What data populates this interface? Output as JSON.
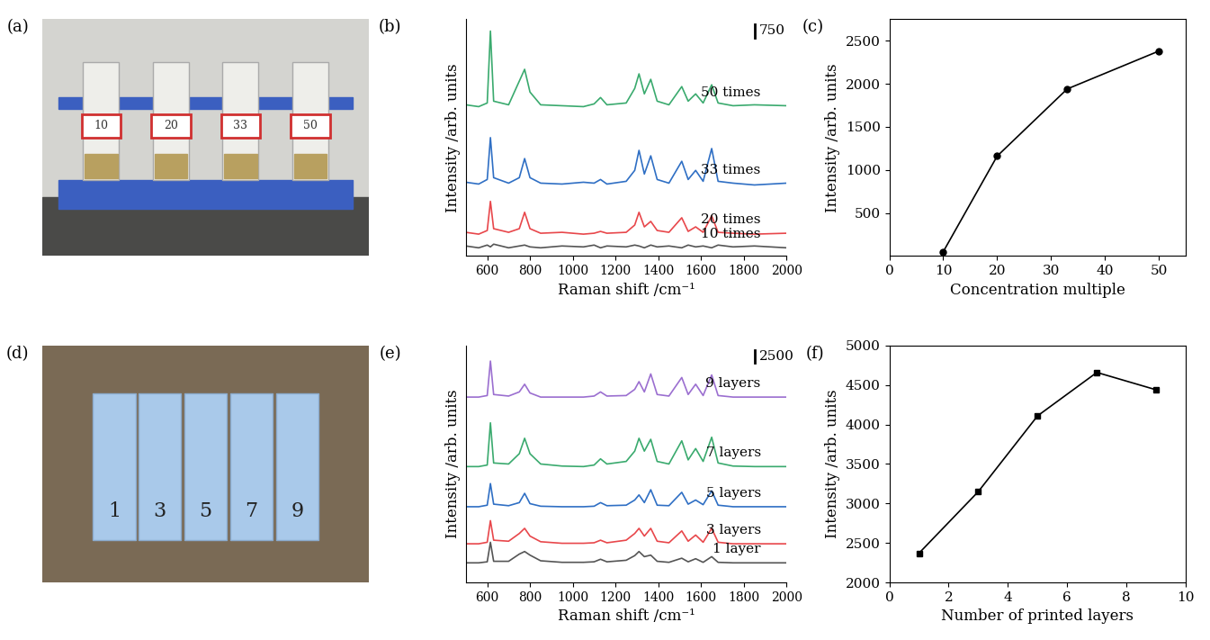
{
  "chart_data": [
    {
      "type": "photo",
      "title": "(a)",
      "labels": [
        "10",
        "20",
        "33",
        "50"
      ]
    },
    {
      "type": "line",
      "title": "(b)",
      "x_label": "Raman shift /cm⁻¹",
      "y_label": "Intensity /arb. units",
      "tick_labels": "x",
      "scale_bar": 750,
      "x": [
        500,
        560,
        600,
        615,
        630,
        700,
        750,
        775,
        800,
        850,
        950,
        1050,
        1100,
        1130,
        1160,
        1250,
        1290,
        1310,
        1335,
        1365,
        1395,
        1450,
        1510,
        1540,
        1575,
        1610,
        1650,
        1680,
        1750,
        1850,
        2000
      ],
      "xlim": [
        500,
        2000
      ],
      "xticks": [
        600,
        800,
        1000,
        1200,
        1400,
        1600,
        1800,
        2000
      ],
      "ylim": [
        0,
        13000
      ],
      "yticks": [],
      "series": [
        {
          "name": "10 times",
          "color": "#555555",
          "values": [
            550,
            450,
            600,
            500,
            650,
            450,
            550,
            600,
            500,
            450,
            550,
            500,
            600,
            450,
            550,
            500,
            600,
            550,
            450,
            600,
            500,
            550,
            450,
            600,
            500,
            550,
            450,
            600,
            500,
            550,
            450
          ]
        },
        {
          "name": "20 times",
          "color": "#e8474b",
          "values": [
            1300,
            1200,
            1400,
            3000,
            1500,
            1300,
            1500,
            2400,
            1500,
            1250,
            1300,
            1200,
            1250,
            1350,
            1250,
            1300,
            1700,
            2400,
            1600,
            1900,
            1400,
            1300,
            2100,
            1350,
            1600,
            1300,
            2200,
            1300,
            1250,
            1200,
            1250
          ]
        },
        {
          "name": "33 times",
          "color": "#2f6fc4",
          "values": [
            4050,
            3950,
            4200,
            6500,
            4300,
            4000,
            4300,
            5350,
            4300,
            4000,
            3950,
            4050,
            4000,
            4200,
            3950,
            4100,
            4700,
            5800,
            4500,
            5500,
            4200,
            4000,
            5200,
            4200,
            4700,
            4100,
            5900,
            4100,
            4000,
            3900,
            4000
          ]
        },
        {
          "name": "50 times",
          "color": "#3aaa6e",
          "values": [
            8300,
            8200,
            8400,
            12350,
            8500,
            8300,
            9600,
            10250,
            9000,
            8300,
            8250,
            8200,
            8350,
            8700,
            8300,
            8400,
            9200,
            10000,
            8900,
            9700,
            8500,
            8300,
            9300,
            8500,
            8900,
            8400,
            9400,
            8400,
            8250,
            8300,
            8250
          ]
        }
      ]
    },
    {
      "type": "line",
      "title": "(c)",
      "x_label": "Concentration multiple",
      "y_label": "Intensity /arb. units",
      "marker": "o",
      "color": "#000000",
      "x": [
        10,
        20,
        33,
        50
      ],
      "values": [
        50,
        1160,
        1940,
        2380
      ],
      "xlim": [
        0,
        55
      ],
      "xticks": [
        0,
        10,
        20,
        30,
        40,
        50
      ],
      "ylim": [
        0,
        2750
      ],
      "yticks": [
        500,
        1000,
        1500,
        2000,
        2500
      ]
    },
    {
      "type": "photo",
      "title": "(d)",
      "labels": [
        "1",
        "3",
        "5",
        "7",
        "9"
      ]
    },
    {
      "type": "line",
      "title": "(e)",
      "x_label": "Raman shift /cm⁻¹",
      "y_label": "Intensity /arb. units",
      "tick_labels": "x",
      "scale_bar": 2500,
      "x": [
        500,
        560,
        600,
        615,
        630,
        700,
        750,
        775,
        800,
        850,
        950,
        1050,
        1100,
        1130,
        1160,
        1250,
        1290,
        1310,
        1335,
        1365,
        1395,
        1450,
        1510,
        1540,
        1575,
        1610,
        1650,
        1680,
        1750,
        1850,
        2000
      ],
      "xlim": [
        500,
        2000
      ],
      "xticks": [
        600,
        800,
        1000,
        1200,
        1400,
        1600,
        1800,
        2000
      ],
      "ylim": [
        0,
        46000
      ],
      "yticks": [],
      "series": [
        {
          "name": "1 layer",
          "color": "#555555",
          "values": [
            3800,
            3800,
            4000,
            7800,
            4100,
            4100,
            5500,
            6000,
            5300,
            4200,
            3900,
            3900,
            4000,
            4500,
            4000,
            4300,
            5200,
            6000,
            5000,
            5300,
            4100,
            3900,
            4700,
            4000,
            4600,
            3900,
            5000,
            3900,
            3800,
            3800,
            3800
          ]
        },
        {
          "name": "3 layers",
          "color": "#e8474b",
          "values": [
            7500,
            7500,
            7800,
            12000,
            8200,
            8000,
            9500,
            10500,
            9000,
            7900,
            7600,
            7600,
            7700,
            8200,
            7700,
            8200,
            9500,
            10500,
            9000,
            10500,
            8000,
            7700,
            10000,
            8000,
            9200,
            7800,
            10500,
            7800,
            7500,
            7500,
            7500
          ]
        },
        {
          "name": "5 layers",
          "color": "#2f6fc4",
          "values": [
            14700,
            14700,
            15000,
            19200,
            15200,
            14900,
            15500,
            17300,
            15300,
            14800,
            14700,
            14700,
            14800,
            15500,
            14900,
            15000,
            16000,
            17000,
            15500,
            18000,
            15000,
            14900,
            17500,
            15200,
            16000,
            15100,
            17800,
            15000,
            14700,
            14700,
            14700
          ]
        },
        {
          "name": "7 layers",
          "color": "#3aaa6e",
          "values": [
            22500,
            22500,
            22800,
            31000,
            23200,
            23000,
            25000,
            28000,
            25000,
            23000,
            22600,
            22500,
            22800,
            24000,
            23000,
            23500,
            25500,
            28000,
            25500,
            27800,
            23500,
            23000,
            27500,
            23800,
            26000,
            23500,
            28200,
            23200,
            22600,
            22500,
            22500
          ]
        },
        {
          "name": "9 layers",
          "color": "#9b6fd0",
          "values": [
            36000,
            36000,
            36300,
            43000,
            36500,
            36200,
            37000,
            38500,
            36800,
            36000,
            36000,
            36000,
            36200,
            37000,
            36200,
            36300,
            37500,
            39000,
            37000,
            40500,
            36500,
            36200,
            39800,
            36500,
            38500,
            36300,
            40300,
            36300,
            36000,
            36000,
            36000
          ]
        }
      ]
    },
    {
      "type": "line",
      "title": "(f)",
      "x_label": "Number of printed layers",
      "y_label": "Intensity /arb. units",
      "marker": "s",
      "color": "#000000",
      "x": [
        1,
        3,
        5,
        7,
        9
      ],
      "values": [
        2370,
        3150,
        4110,
        4660,
        4440
      ],
      "xlim": [
        0,
        10
      ],
      "xticks": [
        0,
        2,
        4,
        6,
        8,
        10
      ],
      "ylim": [
        2000,
        5000
      ],
      "yticks": [
        2000,
        2500,
        3000,
        3500,
        4000,
        4500,
        5000
      ]
    }
  ]
}
